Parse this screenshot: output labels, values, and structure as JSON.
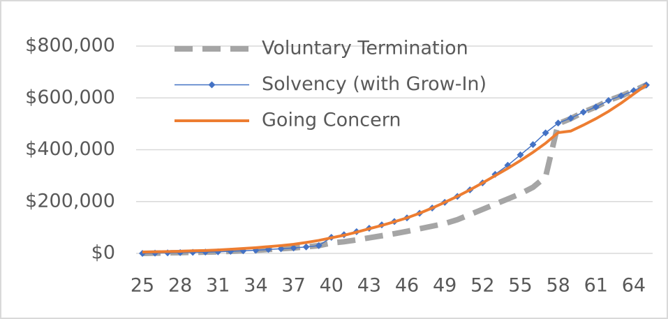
{
  "chart_data": {
    "type": "line",
    "x": [
      25,
      26,
      27,
      28,
      29,
      30,
      31,
      32,
      33,
      34,
      35,
      36,
      37,
      38,
      39,
      40,
      41,
      42,
      43,
      44,
      45,
      46,
      47,
      48,
      49,
      50,
      51,
      52,
      53,
      54,
      55,
      56,
      57,
      58,
      59,
      60,
      61,
      62,
      63,
      64,
      65
    ],
    "series": [
      {
        "name": "Voluntary Termination",
        "color": "#a5a5a5",
        "style": "dashed",
        "values": [
          0,
          1000,
          2000,
          3000,
          4000,
          5000,
          6000,
          8000,
          10000,
          12000,
          15000,
          18000,
          21000,
          25000,
          30000,
          40000,
          45000,
          52000,
          60000,
          68000,
          76000,
          85000,
          95000,
          105000,
          115000,
          130000,
          150000,
          170000,
          190000,
          210000,
          230000,
          255000,
          295000,
          500000,
          520000,
          545000,
          565000,
          590000,
          608000,
          628000,
          650000
        ]
      },
      {
        "name": "Solvency (with Grow-In)",
        "color": "#4472c4",
        "style": "markers",
        "values": [
          0,
          1000,
          2000,
          3000,
          4000,
          5000,
          6000,
          8000,
          10000,
          12000,
          15000,
          18000,
          21000,
          25000,
          30000,
          62000,
          72000,
          84000,
          97000,
          110000,
          123000,
          137000,
          155000,
          175000,
          197000,
          220000,
          245000,
          272000,
          305000,
          340000,
          380000,
          420000,
          465000,
          503000,
          522000,
          545000,
          565000,
          590000,
          608000,
          628000,
          650000
        ]
      },
      {
        "name": "Going Concern",
        "color": "#ed7d31",
        "style": "solid",
        "values": [
          5000,
          6000,
          7000,
          8000,
          10000,
          11000,
          13000,
          16000,
          19000,
          22000,
          26000,
          30000,
          35000,
          42000,
          50000,
          60000,
          70000,
          82000,
          95000,
          108000,
          122000,
          137000,
          155000,
          175000,
          197000,
          220000,
          245000,
          272000,
          300000,
          328000,
          358000,
          390000,
          425000,
          466000,
          472000,
          495000,
          520000,
          548000,
          580000,
          615000,
          650000
        ]
      }
    ],
    "xlim": [
      24.5,
      65.5
    ],
    "xticks": [
      25,
      28,
      31,
      34,
      37,
      40,
      43,
      46,
      49,
      52,
      55,
      58,
      61,
      64
    ],
    "ylim": [
      0,
      800000
    ],
    "yticks": [
      {
        "value": 0,
        "label": "$0"
      },
      {
        "value": 200000,
        "label": "$200,000"
      },
      {
        "value": 400000,
        "label": "$400,000"
      },
      {
        "value": 600000,
        "label": "$600,000"
      },
      {
        "value": 800000,
        "label": "$800,000"
      }
    ],
    "grid": true,
    "legend": "upper left"
  }
}
